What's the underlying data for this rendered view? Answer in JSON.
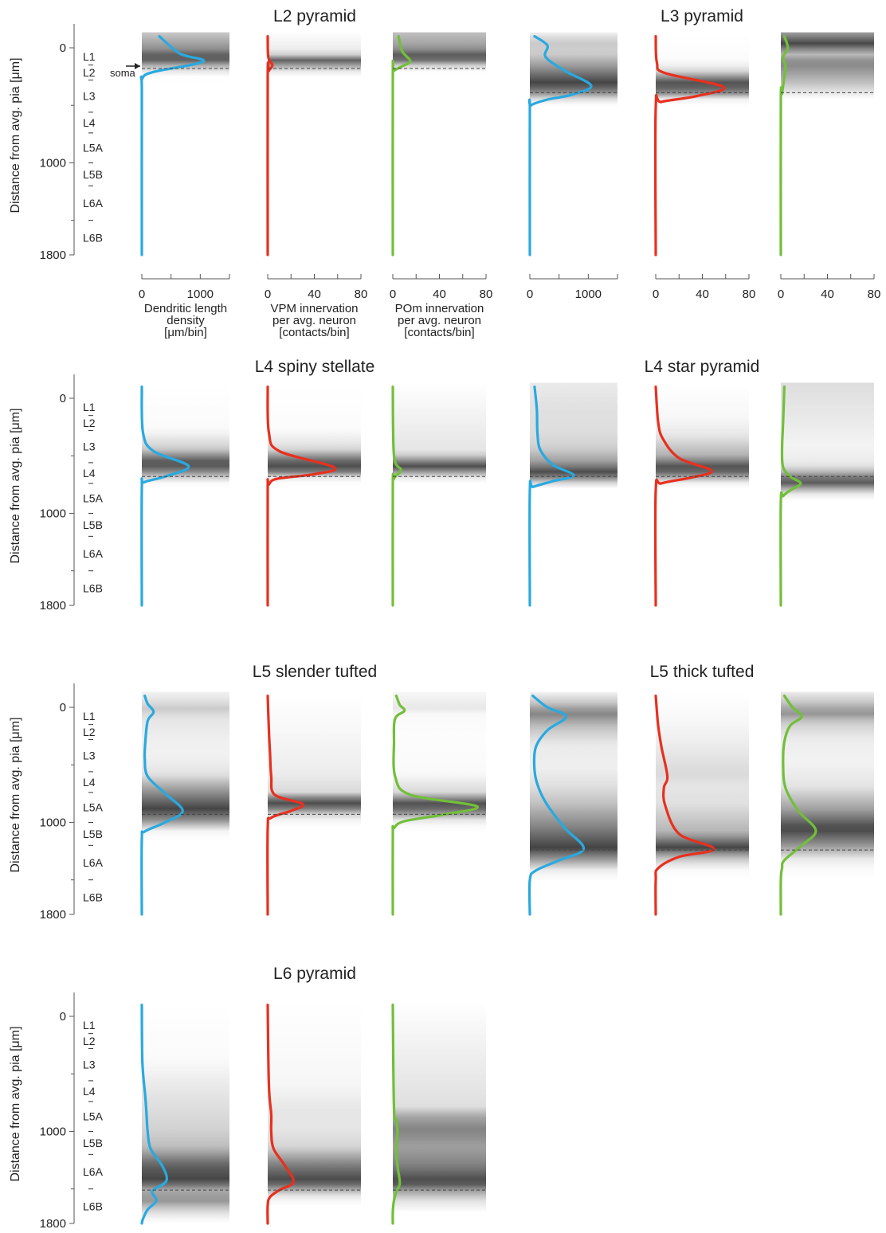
{
  "figure": {
    "y_axis_title": "Distance from avg. pia [μm]",
    "y_tick_labels": [
      "0",
      "1000",
      "1800"
    ],
    "layer_labels": [
      "L1",
      "L2",
      "L3",
      "L4",
      "L5A",
      "L5B",
      "L6A",
      "L6B"
    ],
    "soma_label": "soma",
    "column_titles": [
      [
        "Dendritic length",
        "density",
        "[μm/bin]"
      ],
      [
        "VPM innervation",
        "per avg. neuron",
        "[contacts/bin]"
      ],
      [
        "POm innervation",
        "per avg. neuron",
        "[contacts/bin]"
      ]
    ],
    "colors": {
      "dendrite": "#29a9e0",
      "vpm": "#e8301f",
      "pom": "#72bf3a",
      "soma_line": "#444444"
    }
  },
  "chart_data": [
    {
      "type": "line",
      "title": "L2 pyramid",
      "ylim": [
        0,
        1800
      ],
      "y_direction": "down",
      "soma_depth": 180,
      "columns": [
        {
          "variable": "dendrite",
          "xlim": [
            0,
            1500
          ],
          "xticks": [
            0,
            1000
          ],
          "x": [
            300,
            650,
            1050,
            200,
            5,
            0,
            0
          ],
          "y": [
            -100,
            50,
            120,
            210,
            270,
            400,
            1800
          ]
        },
        {
          "variable": "vpm",
          "xlim": [
            0,
            80
          ],
          "xticks": [
            0,
            40,
            80
          ],
          "x": [
            0,
            0.5,
            4,
            1,
            0,
            0
          ],
          "y": [
            -100,
            80,
            150,
            200,
            260,
            1800
          ]
        },
        {
          "variable": "pom",
          "xlim": [
            0,
            80
          ],
          "xticks": [
            0,
            40,
            80
          ],
          "x": [
            5,
            8,
            15,
            8,
            1,
            0,
            0
          ],
          "y": [
            -100,
            30,
            115,
            160,
            200,
            240,
            1800
          ]
        }
      ]
    },
    {
      "type": "line",
      "title": "L3 pyramid",
      "ylim": [
        0,
        1800
      ],
      "y_direction": "down",
      "soma_depth": 390,
      "columns": [
        {
          "variable": "dendrite",
          "xlim": [
            0,
            1500
          ],
          "xticks": [
            0,
            1000
          ],
          "x": [
            80,
            300,
            270,
            600,
            1050,
            700,
            300,
            20,
            0,
            0
          ],
          "y": [
            -100,
            -20,
            80,
            200,
            330,
            410,
            450,
            500,
            560,
            1800
          ]
        },
        {
          "variable": "vpm",
          "xlim": [
            0,
            80
          ],
          "xticks": [
            0,
            40,
            80
          ],
          "x": [
            0,
            1,
            8,
            58,
            35,
            5,
            0,
            0
          ],
          "y": [
            -100,
            130,
            220,
            340,
            420,
            470,
            520,
            1800
          ]
        },
        {
          "variable": "pom",
          "xlim": [
            0,
            80
          ],
          "xticks": [
            0,
            40,
            80
          ],
          "x": [
            3,
            6,
            2,
            4,
            3,
            2,
            1,
            0,
            0
          ],
          "y": [
            -100,
            0,
            80,
            160,
            250,
            330,
            400,
            460,
            1800
          ]
        }
      ]
    },
    {
      "type": "line",
      "title": "L4 spiny stellate",
      "ylim": [
        0,
        1800
      ],
      "y_direction": "down",
      "soma_depth": 680,
      "columns": [
        {
          "variable": "dendrite",
          "xlim": [
            0,
            1500
          ],
          "xticks": [
            0,
            1000
          ],
          "x": [
            0,
            20,
            200,
            800,
            400,
            40,
            0,
            0
          ],
          "y": [
            -100,
            300,
            460,
            590,
            680,
            730,
            790,
            1800
          ]
        },
        {
          "variable": "vpm",
          "xlim": [
            0,
            80
          ],
          "xticks": [
            0,
            40,
            80
          ],
          "x": [
            0,
            1,
            10,
            57,
            40,
            8,
            1,
            0,
            0
          ],
          "y": [
            -100,
            300,
            460,
            600,
            660,
            700,
            750,
            790,
            1800
          ]
        },
        {
          "variable": "pom",
          "xlim": [
            0,
            80
          ],
          "xticks": [
            0,
            40,
            80
          ],
          "x": [
            0,
            1,
            7,
            3,
            1,
            0,
            0
          ],
          "y": [
            -100,
            500,
            620,
            670,
            700,
            750,
            1800
          ]
        }
      ]
    },
    {
      "type": "line",
      "title": "L4 star pyramid",
      "ylim": [
        0,
        1800
      ],
      "y_direction": "down",
      "soma_depth": 680,
      "columns": [
        {
          "variable": "dendrite",
          "xlim": [
            0,
            1500
          ],
          "xticks": [
            0,
            1000
          ],
          "x": [
            80,
            120,
            130,
            180,
            400,
            750,
            400,
            60,
            0,
            0
          ],
          "y": [
            -100,
            100,
            300,
            450,
            580,
            670,
            720,
            770,
            800,
            1800
          ]
        },
        {
          "variable": "vpm",
          "xlim": [
            0,
            80
          ],
          "xticks": [
            0,
            40,
            80
          ],
          "x": [
            0,
            2,
            6,
            20,
            48,
            30,
            5,
            0,
            0
          ],
          "y": [
            -100,
            200,
            350,
            520,
            630,
            690,
            740,
            800,
            1800
          ]
        },
        {
          "variable": "pom",
          "xlim": [
            0,
            80
          ],
          "xticks": [
            0,
            40,
            80
          ],
          "x": [
            3,
            2,
            1,
            2,
            8,
            17,
            8,
            2,
            0,
            0
          ],
          "y": [
            -100,
            200,
            450,
            600,
            680,
            740,
            800,
            850,
            900,
            1800
          ]
        }
      ]
    },
    {
      "type": "line",
      "title": "L5 slender tufted",
      "ylim": [
        0,
        1800
      ],
      "y_direction": "down",
      "soma_depth": 930,
      "columns": [
        {
          "variable": "dendrite",
          "xlim": [
            0,
            1500
          ],
          "xticks": [
            0,
            1000
          ],
          "x": [
            50,
            100,
            200,
            100,
            60,
            50,
            100,
            400,
            700,
            400,
            50,
            0,
            0
          ],
          "y": [
            -100,
            -30,
            40,
            120,
            300,
            450,
            600,
            750,
            900,
            1000,
            1080,
            1150,
            1800
          ]
        },
        {
          "variable": "vpm",
          "xlim": [
            0,
            80
          ],
          "xticks": [
            0,
            40,
            80
          ],
          "x": [
            0,
            1,
            2,
            3,
            6,
            30,
            20,
            3,
            0,
            0
          ],
          "y": [
            -100,
            200,
            400,
            600,
            760,
            840,
            900,
            960,
            1050,
            1800
          ]
        },
        {
          "variable": "pom",
          "xlim": [
            0,
            80
          ],
          "xticks": [
            0,
            40,
            80
          ],
          "x": [
            3,
            6,
            10,
            2,
            1,
            2,
            15,
            72,
            45,
            10,
            1,
            0,
            0
          ],
          "y": [
            -100,
            -20,
            30,
            100,
            300,
            600,
            760,
            860,
            930,
            990,
            1050,
            1100,
            1800
          ]
        }
      ]
    },
    {
      "type": "line",
      "title": "L5 thick tufted",
      "ylim": [
        0,
        1800
      ],
      "y_direction": "down",
      "soma_depth": 1240,
      "columns": [
        {
          "variable": "dendrite",
          "xlim": [
            0,
            1500
          ],
          "xticks": [
            0,
            1000
          ],
          "x": [
            50,
            300,
            620,
            300,
            100,
            80,
            150,
            300,
            600,
            920,
            500,
            100,
            0,
            0
          ],
          "y": [
            -100,
            0,
            80,
            200,
            350,
            550,
            700,
            850,
            1050,
            1230,
            1330,
            1420,
            1500,
            1800
          ]
        },
        {
          "variable": "vpm",
          "xlim": [
            0,
            80
          ],
          "xticks": [
            0,
            40,
            80
          ],
          "x": [
            0,
            2,
            5,
            10,
            7,
            8,
            20,
            50,
            20,
            2,
            0,
            0
          ],
          "y": [
            -100,
            150,
            350,
            600,
            700,
            850,
            1100,
            1230,
            1300,
            1400,
            1500,
            1800
          ]
        },
        {
          "variable": "pom",
          "xlim": [
            0,
            80
          ],
          "xticks": [
            0,
            40,
            80
          ],
          "x": [
            3,
            10,
            18,
            8,
            3,
            2,
            4,
            15,
            30,
            18,
            3,
            1,
            0,
            0
          ],
          "y": [
            -100,
            0,
            80,
            160,
            300,
            500,
            700,
            900,
            1070,
            1200,
            1330,
            1400,
            1500,
            1800
          ]
        }
      ]
    },
    {
      "type": "line",
      "title": "L6 pyramid",
      "ylim": [
        0,
        1800
      ],
      "y_direction": "down",
      "soma_depth": 1510,
      "columns": [
        {
          "variable": "dendrite",
          "xlim": [
            0,
            1500
          ],
          "xticks": [
            0,
            1000
          ],
          "x": [
            0,
            10,
            60,
            80,
            100,
            150,
            350,
            420,
            180,
            250,
            100,
            20,
            0
          ],
          "y": [
            -100,
            400,
            700,
            850,
            1000,
            1150,
            1300,
            1430,
            1520,
            1600,
            1680,
            1760,
            1800
          ]
        },
        {
          "variable": "vpm",
          "xlim": [
            0,
            80
          ],
          "xticks": [
            0,
            40,
            80
          ],
          "x": [
            0,
            1,
            3,
            3,
            5,
            15,
            22,
            10,
            2,
            0,
            0
          ],
          "y": [
            -100,
            600,
            850,
            1000,
            1150,
            1300,
            1440,
            1510,
            1570,
            1640,
            1800
          ]
        },
        {
          "variable": "pom",
          "xlim": [
            0,
            80
          ],
          "xticks": [
            0,
            40,
            80
          ],
          "x": [
            0,
            1,
            3,
            4,
            3,
            4,
            6,
            3,
            1,
            0,
            0
          ],
          "y": [
            -100,
            800,
            900,
            1000,
            1150,
            1300,
            1450,
            1520,
            1600,
            1700,
            1800
          ]
        }
      ]
    }
  ]
}
